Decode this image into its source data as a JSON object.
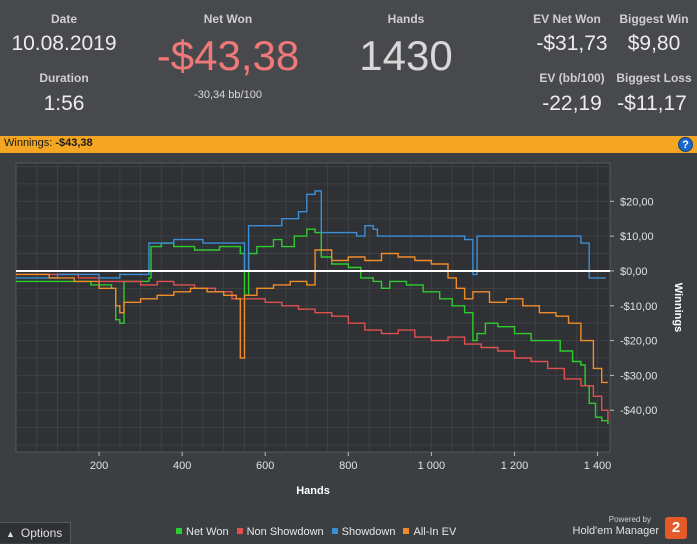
{
  "stats": {
    "date_label": "Date",
    "date_value": "10.08.2019",
    "duration_label": "Duration",
    "duration_value": "1:56",
    "net_won_label": "Net Won",
    "net_won_value": "-$43,38",
    "net_won_bb": "-30,34 bb/100",
    "hands_label": "Hands",
    "hands_value": "1430",
    "ev_net_won_label": "EV Net Won",
    "ev_net_won_value": "-$31,73",
    "biggest_win_label": "Biggest Win",
    "biggest_win_value": "$9,80",
    "ev_bb_label": "EV (bb/100)",
    "ev_bb_value": "-22,19",
    "biggest_loss_label": "Biggest Loss",
    "biggest_loss_value": "-$11,17",
    "net_won_color": "#f07878"
  },
  "winnings_bar": {
    "label": "Winnings:",
    "value": "-$43,38",
    "help_icon": "?",
    "color": "#f4a623"
  },
  "footer": {
    "options_label": "Options",
    "powered_by": "Powered by",
    "brand": "Hold'em Manager",
    "brand_badge": "2"
  },
  "chart_data": {
    "type": "line",
    "xlabel": "Hands",
    "ylabel": "Winnings",
    "xlim": [
      0,
      1430
    ],
    "ylim": [
      -52,
      31
    ],
    "x_ticks": [
      200,
      400,
      600,
      800,
      1000,
      1200,
      1400
    ],
    "x_tick_labels": [
      "200",
      "400",
      "600",
      "800",
      "1 000",
      "1 200",
      "1 400"
    ],
    "y_ticks": [
      20,
      10,
      0,
      -10,
      -20,
      -30,
      -40
    ],
    "y_tick_labels": [
      "$20,00",
      "$10,00",
      "$0,00",
      "-$10,00",
      "-$20,00",
      "-$30,00",
      "-$40,00"
    ],
    "grid": true,
    "legend_position": "bottom",
    "zero_line_color": "#ffffff",
    "series": [
      {
        "name": "Net Won",
        "color": "#2ecc2e",
        "points": [
          [
            0,
            -3
          ],
          [
            100,
            -3
          ],
          [
            180,
            -4
          ],
          [
            230,
            -5
          ],
          [
            240,
            -14
          ],
          [
            250,
            -15
          ],
          [
            260,
            -3
          ],
          [
            320,
            -2
          ],
          [
            325,
            7
          ],
          [
            350,
            8
          ],
          [
            380,
            7
          ],
          [
            430,
            6
          ],
          [
            470,
            6
          ],
          [
            490,
            7
          ],
          [
            540,
            5
          ],
          [
            550,
            -7
          ],
          [
            560,
            5
          ],
          [
            580,
            7
          ],
          [
            600,
            7
          ],
          [
            620,
            9
          ],
          [
            640,
            7
          ],
          [
            670,
            10
          ],
          [
            700,
            12
          ],
          [
            720,
            11
          ],
          [
            735,
            4
          ],
          [
            760,
            2
          ],
          [
            800,
            1
          ],
          [
            830,
            -2
          ],
          [
            860,
            -3
          ],
          [
            880,
            -5
          ],
          [
            900,
            -3
          ],
          [
            940,
            -4
          ],
          [
            980,
            -6
          ],
          [
            1020,
            -8
          ],
          [
            1050,
            -10
          ],
          [
            1080,
            -12
          ],
          [
            1100,
            -20
          ],
          [
            1110,
            -18
          ],
          [
            1130,
            -15
          ],
          [
            1160,
            -16
          ],
          [
            1200,
            -18
          ],
          [
            1240,
            -20
          ],
          [
            1280,
            -20
          ],
          [
            1310,
            -23
          ],
          [
            1340,
            -26
          ],
          [
            1360,
            -27
          ],
          [
            1370,
            -33
          ],
          [
            1380,
            -38
          ],
          [
            1395,
            -42
          ],
          [
            1410,
            -43
          ],
          [
            1425,
            -44
          ]
        ]
      },
      {
        "name": "Non Showdown",
        "color": "#e05050",
        "points": [
          [
            0,
            -1
          ],
          [
            80,
            -1
          ],
          [
            150,
            -2
          ],
          [
            200,
            -3
          ],
          [
            260,
            -3
          ],
          [
            300,
            -4
          ],
          [
            340,
            -3
          ],
          [
            380,
            -4
          ],
          [
            430,
            -5
          ],
          [
            480,
            -6
          ],
          [
            520,
            -8
          ],
          [
            560,
            -8
          ],
          [
            600,
            -9
          ],
          [
            640,
            -10
          ],
          [
            680,
            -11
          ],
          [
            720,
            -12
          ],
          [
            760,
            -13
          ],
          [
            800,
            -15
          ],
          [
            840,
            -17
          ],
          [
            880,
            -18
          ],
          [
            920,
            -17
          ],
          [
            960,
            -19
          ],
          [
            1000,
            -20
          ],
          [
            1040,
            -19
          ],
          [
            1080,
            -21
          ],
          [
            1120,
            -22
          ],
          [
            1160,
            -23
          ],
          [
            1200,
            -25
          ],
          [
            1240,
            -26
          ],
          [
            1280,
            -28
          ],
          [
            1320,
            -31
          ],
          [
            1360,
            -33
          ],
          [
            1390,
            -36
          ],
          [
            1410,
            -40
          ],
          [
            1425,
            -43
          ]
        ]
      },
      {
        "name": "Showdown",
        "color": "#3a8fd8",
        "points": [
          [
            0,
            -2
          ],
          [
            100,
            -1
          ],
          [
            200,
            -2
          ],
          [
            250,
            -1
          ],
          [
            320,
            8
          ],
          [
            380,
            9
          ],
          [
            450,
            8
          ],
          [
            500,
            8
          ],
          [
            540,
            8
          ],
          [
            550,
            0
          ],
          [
            560,
            13
          ],
          [
            600,
            13
          ],
          [
            640,
            15
          ],
          [
            680,
            17
          ],
          [
            700,
            22
          ],
          [
            720,
            23
          ],
          [
            735,
            11
          ],
          [
            760,
            11
          ],
          [
            820,
            10
          ],
          [
            840,
            13
          ],
          [
            860,
            12
          ],
          [
            870,
            10
          ],
          [
            900,
            10
          ],
          [
            960,
            10
          ],
          [
            1000,
            10
          ],
          [
            1040,
            10
          ],
          [
            1080,
            9
          ],
          [
            1100,
            -1
          ],
          [
            1110,
            10
          ],
          [
            1160,
            10
          ],
          [
            1200,
            10
          ],
          [
            1240,
            10
          ],
          [
            1280,
            10
          ],
          [
            1320,
            10
          ],
          [
            1360,
            8
          ],
          [
            1380,
            -2
          ],
          [
            1400,
            -2
          ],
          [
            1420,
            -2
          ]
        ]
      },
      {
        "name": "All-In EV",
        "color": "#f08c2a",
        "points": [
          [
            0,
            -1
          ],
          [
            80,
            -2
          ],
          [
            140,
            -3
          ],
          [
            200,
            -5
          ],
          [
            240,
            -10
          ],
          [
            250,
            -12
          ],
          [
            260,
            -9
          ],
          [
            300,
            -8
          ],
          [
            340,
            -7
          ],
          [
            380,
            -6
          ],
          [
            420,
            -5
          ],
          [
            460,
            -6
          ],
          [
            500,
            -7
          ],
          [
            530,
            -8
          ],
          [
            540,
            -25
          ],
          [
            550,
            -7
          ],
          [
            580,
            -5
          ],
          [
            620,
            -4
          ],
          [
            660,
            -3
          ],
          [
            700,
            -4
          ],
          [
            720,
            6
          ],
          [
            760,
            3
          ],
          [
            800,
            4
          ],
          [
            840,
            3
          ],
          [
            880,
            5
          ],
          [
            920,
            4
          ],
          [
            960,
            3
          ],
          [
            1000,
            2
          ],
          [
            1040,
            -2
          ],
          [
            1060,
            -5
          ],
          [
            1080,
            -8
          ],
          [
            1100,
            -6
          ],
          [
            1140,
            -9
          ],
          [
            1180,
            -8
          ],
          [
            1220,
            -10
          ],
          [
            1260,
            -12
          ],
          [
            1300,
            -13
          ],
          [
            1330,
            -15
          ],
          [
            1360,
            -20
          ],
          [
            1390,
            -28
          ],
          [
            1410,
            -32
          ],
          [
            1425,
            -32
          ]
        ]
      }
    ]
  }
}
